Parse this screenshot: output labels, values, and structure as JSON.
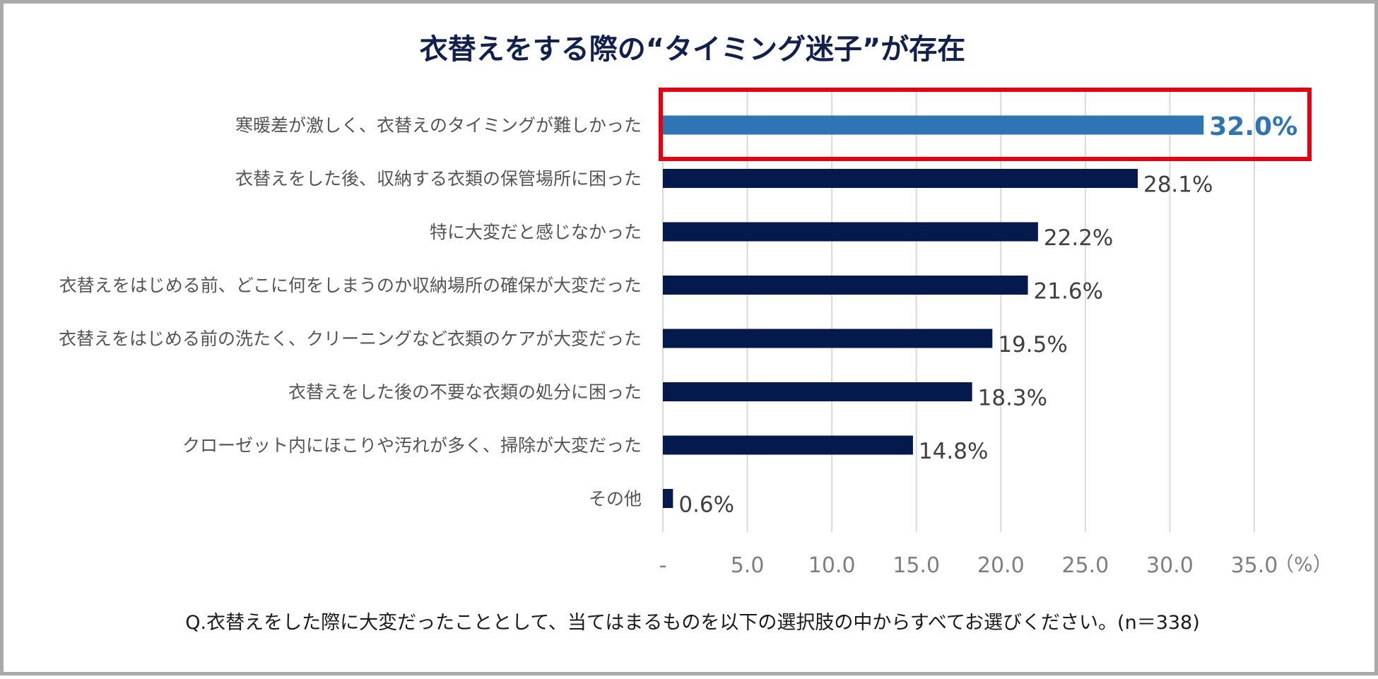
{
  "chart_data": {
    "type": "bar",
    "orientation": "horizontal",
    "title": "衣替えをする際の“タイミング迷子”が存在",
    "categories": [
      "寒暖差が激しく、衣替えのタイミングが難しかった",
      "衣替えをした後、収納する衣類の保管場所に困った",
      "特に大変だと感じなかった",
      "衣替えをはじめる前、どこに何をしまうのか収納場所の確保が大変だった",
      "衣替えをはじめる前の洗たく、クリーニングなど衣類のケアが大変だった",
      "衣替えをした後の不要な衣類の処分に困った",
      "クローゼット内にほこりや汚れが多く、掃除が大変だった",
      "その他"
    ],
    "values": [
      32.0,
      28.1,
      22.2,
      21.6,
      19.5,
      18.3,
      14.8,
      0.6
    ],
    "value_labels": [
      "32.0%",
      "28.1%",
      "22.2%",
      "21.6%",
      "19.5%",
      "18.3%",
      "14.8%",
      "0.6%"
    ],
    "highlight_index": 0,
    "xlim": [
      0,
      35
    ],
    "x_ticks": [
      0,
      5,
      10,
      15,
      20,
      25,
      30,
      35
    ],
    "x_tick_labels": [
      "-",
      "5.0",
      "10.0",
      "15.0",
      "20.0",
      "25.0",
      "30.0",
      "35.0"
    ],
    "x_unit": "（%）",
    "grid": true,
    "footnote": "Q.衣替えをした際に大変だったこととして、当てはまるものを以下の選択肢の中からすべてお選びください。(n＝338)",
    "colors": {
      "bar": "#041a4d",
      "highlight_bar": "#2e75b6",
      "highlight_box": "#e60012",
      "grid": "#d9d9d9"
    }
  }
}
